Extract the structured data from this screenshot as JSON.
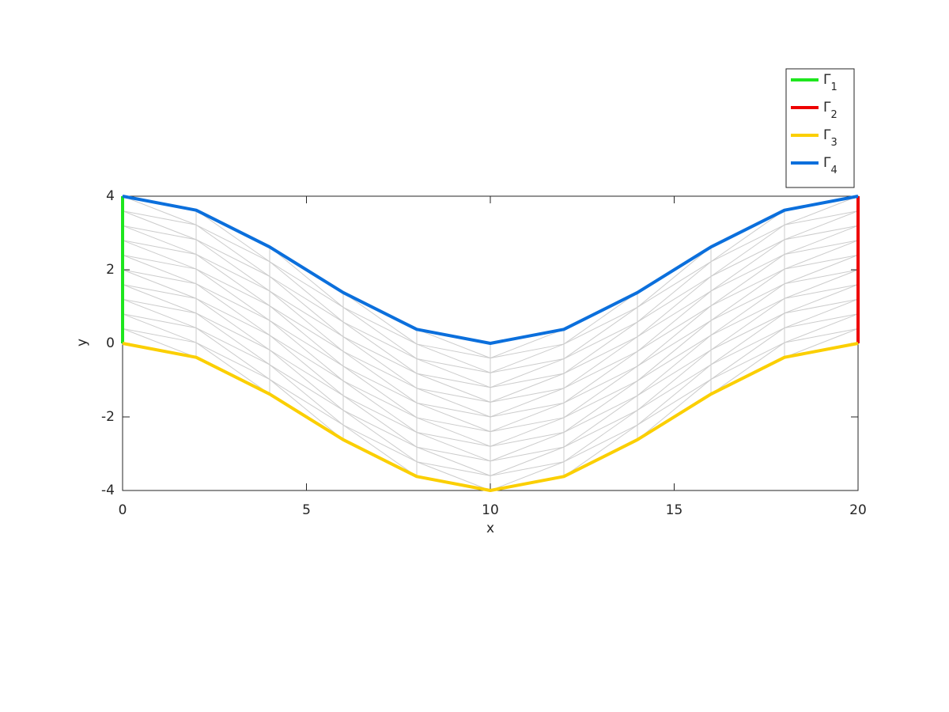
{
  "chart_data": {
    "type": "line",
    "xlabel": "x",
    "ylabel": "y",
    "xlim": [
      0,
      20
    ],
    "ylim": [
      -4,
      4
    ],
    "xticks": [
      0,
      5,
      10,
      15,
      20
    ],
    "yticks": [
      -4,
      -2,
      0,
      2,
      4
    ],
    "legend": "top-right",
    "mesh": {
      "color": "#cccccc",
      "divisions": 10
    },
    "series": [
      {
        "name": "Γ1",
        "color": "#1ee61e",
        "x": [
          0,
          0
        ],
        "values": [
          0,
          4
        ]
      },
      {
        "name": "Γ2",
        "color": "#ee0000",
        "x": [
          20,
          20
        ],
        "values": [
          0,
          4
        ]
      },
      {
        "name": "Γ3",
        "color": "#fbcf00",
        "x": [
          0,
          2,
          4,
          6,
          8,
          10,
          12,
          14,
          16,
          18,
          20
        ],
        "values": [
          0,
          -0.38,
          -1.38,
          -2.62,
          -3.62,
          -4,
          -3.62,
          -2.62,
          -1.38,
          -0.38,
          0
        ]
      },
      {
        "name": "Γ4",
        "color": "#0b6fdc",
        "x": [
          0,
          2,
          4,
          6,
          8,
          10,
          12,
          14,
          16,
          18,
          20
        ],
        "values": [
          4,
          3.62,
          2.62,
          1.38,
          0.38,
          0,
          0.38,
          1.38,
          2.62,
          3.62,
          4
        ]
      }
    ]
  }
}
